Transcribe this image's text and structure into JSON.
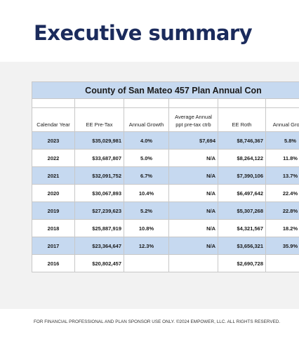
{
  "header": {
    "title": "Executive summary"
  },
  "table": {
    "title": "County of San Mateo 457 Plan Annual Con",
    "columns": [
      "Calendar Year",
      "EE Pre-Tax",
      "Annual Growth",
      "Average Annual ppt pre-tax ctrb",
      "EE Roth",
      "Annual Growth"
    ],
    "rows": [
      [
        "2023",
        "$35,029,981",
        "4.0%",
        "$7,694",
        "$8,746,367",
        "5.8%"
      ],
      [
        "2022",
        "$33,687,807",
        "5.0%",
        "N/A",
        "$8,264,122",
        "11.8%"
      ],
      [
        "2021",
        "$32,091,752",
        "6.7%",
        "N/A",
        "$7,390,106",
        "13.7%"
      ],
      [
        "2020",
        "$30,067,893",
        "10.4%",
        "N/A",
        "$6,497,642",
        "22.4%"
      ],
      [
        "2019",
        "$27,239,623",
        "5.2%",
        "N/A",
        "$5,307,268",
        "22.8%"
      ],
      [
        "2018",
        "$25,887,919",
        "10.8%",
        "N/A",
        "$4,321,567",
        "18.2%"
      ],
      [
        "2017",
        "$23,364,647",
        "12.3%",
        "N/A",
        "$3,656,321",
        "35.9%"
      ],
      [
        "2016",
        "$20,802,457",
        null,
        null,
        "$2,690,728",
        null
      ]
    ]
  },
  "footer": {
    "text": "FOR FINANCIAL PROFESSIONAL AND PLAN SPONSOR USE ONLY. ©2024 EMPOWER, LLC. ALL RIGHTS RESERVED."
  }
}
